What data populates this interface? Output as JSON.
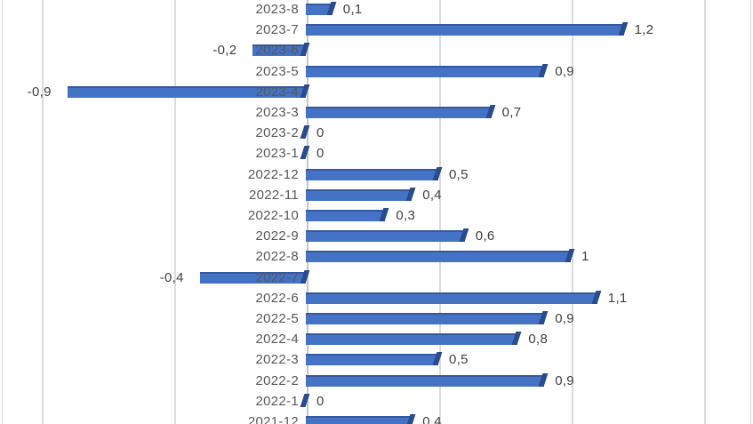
{
  "chart_data": {
    "type": "bar",
    "orientation": "horizontal",
    "style": "excel-3d-horizontal-bar",
    "title": "",
    "xlabel": "",
    "ylabel": "",
    "legend": "none",
    "grid": true,
    "xlim": [
      -1.16,
      1.68
    ],
    "gridline_values": [
      -1,
      -0.5,
      0,
      0.5,
      1,
      1.5
    ],
    "decimal_separator": ",",
    "categories": [
      "2023-8",
      "2023-7",
      "2023-6",
      "2023-5",
      "2023-4",
      "2023-3",
      "2023-2",
      "2023-1",
      "2022-12",
      "2022-11",
      "2022-10",
      "2022-9",
      "2022-8",
      "2022-7",
      "2022-6",
      "2022-5",
      "2022-4",
      "2022-3",
      "2022-2",
      "2022-1",
      "2021-12"
    ],
    "values": [
      0.1,
      1.2,
      -0.2,
      0.9,
      -0.9,
      0.7,
      0,
      0,
      0.5,
      0.4,
      0.3,
      0.6,
      1,
      -0.4,
      1.1,
      0.9,
      0.8,
      0.5,
      0.9,
      0,
      0.4
    ],
    "value_labels": [
      "0,1",
      "1,2",
      "-0,2",
      "0,9",
      "-0,9",
      "0,7",
      "0",
      "0",
      "0,5",
      "0,4",
      "0,3",
      "0,6",
      "1",
      "-0,4",
      "1,1",
      "0,9",
      "0,8",
      "0,5",
      "0,9",
      "0",
      "0,4"
    ]
  },
  "colors": {
    "bar_fill": "#4472C4",
    "bar_top_edge": "#35599F",
    "bar_end_cap": "#2A4C8D",
    "gridline": "#DCDCDC",
    "axis_line": "#C6C6C6",
    "plot_border": "#D9D9D9",
    "category_text": "#595959",
    "value_text": "#404040",
    "background": "#FFFFFF"
  }
}
